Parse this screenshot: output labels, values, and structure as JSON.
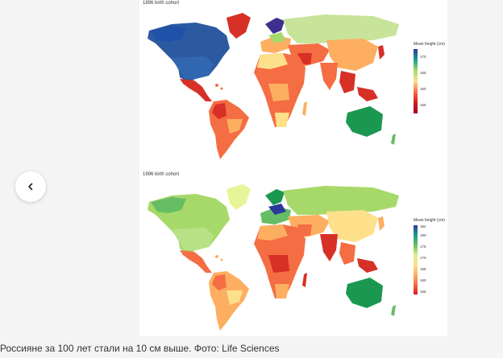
{
  "gallery": {
    "prev_icon": "chevron-left-icon",
    "caption": "Россияне за 100 лет стали на 10 см выше. Фото: Life Sciences"
  },
  "panels": [
    {
      "title": "1896 birth cohort",
      "legend": {
        "title": "Mean height (cm)",
        "ticks": [
          "170",
          "165",
          "160",
          "155"
        ],
        "gradient": [
          "#2b3a9a",
          "#1a9c8c",
          "#a6d96a",
          "#fee08b",
          "#f46d43",
          "#d7191c",
          "#a50026"
        ]
      }
    },
    {
      "title": "1996 birth cohort",
      "legend": {
        "title": "Mean height (cm)",
        "ticks": [
          "182",
          "180",
          "175",
          "170",
          "165",
          "160",
          "155"
        ],
        "gradient": [
          "#2b3a9a",
          "#1a9c8c",
          "#66bd63",
          "#d9ef8b",
          "#fee08b",
          "#fdae61",
          "#f46d43",
          "#d7191c"
        ]
      }
    }
  ]
}
